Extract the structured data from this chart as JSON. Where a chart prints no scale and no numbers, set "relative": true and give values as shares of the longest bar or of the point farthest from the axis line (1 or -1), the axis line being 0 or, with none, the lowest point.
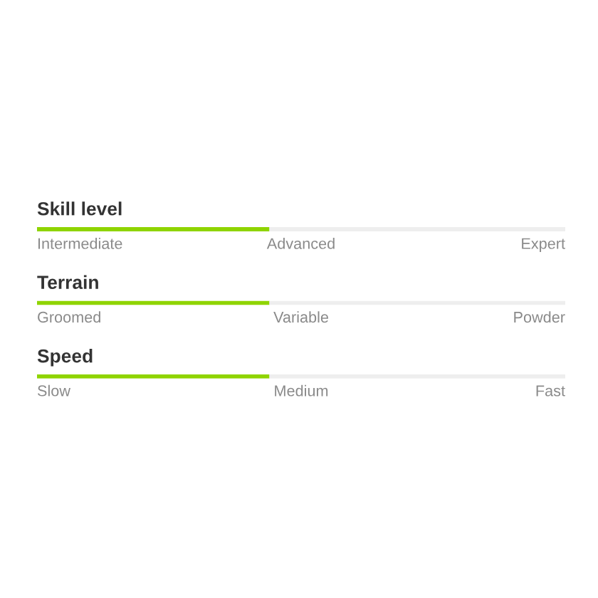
{
  "chart_data": [
    {
      "type": "bar",
      "orientation": "horizontal",
      "stacked": true,
      "relative": true,
      "title": "Skill level",
      "categories": [
        null
      ],
      "series": [
        {
          "color": "#8fd400",
          "values": [
            0.44
          ]
        },
        {
          "color": "#eeeeee",
          "values": [
            0.56
          ]
        }
      ],
      "annotations": [
        "Intermediate",
        "Advanced",
        "Expert"
      ]
    },
    {
      "type": "bar",
      "orientation": "horizontal",
      "stacked": true,
      "relative": true,
      "title": "Terrain",
      "categories": [
        null
      ],
      "series": [
        {
          "color": "#8fd400",
          "values": [
            0.44
          ]
        },
        {
          "color": "#eeeeee",
          "values": [
            0.56
          ]
        }
      ],
      "annotations": [
        "Groomed",
        "Variable",
        "Powder"
      ]
    },
    {
      "type": "bar",
      "orientation": "horizontal",
      "stacked": true,
      "relative": true,
      "title": "Speed",
      "categories": [
        null
      ],
      "series": [
        {
          "color": "#8fd400",
          "values": [
            0.44
          ]
        },
        {
          "color": "#eeeeee",
          "values": [
            0.56
          ]
        }
      ],
      "annotations": [
        "Slow",
        "Medium",
        "Fast"
      ]
    }
  ]
}
